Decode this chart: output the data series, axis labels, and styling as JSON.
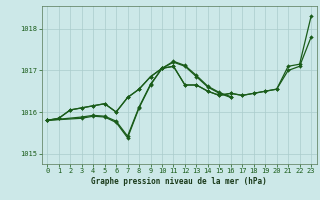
{
  "xlabel": "Graphe pression niveau de la mer (hPa)",
  "background_color": "#cce8e8",
  "grid_color": "#aacccc",
  "line_color": "#1a5c1a",
  "marker_color": "#1a5c1a",
  "xlim": [
    -0.5,
    23.5
  ],
  "ylim": [
    1014.75,
    1018.55
  ],
  "yticks": [
    1015,
    1016,
    1017,
    1018
  ],
  "xticks": [
    0,
    1,
    2,
    3,
    4,
    5,
    6,
    7,
    8,
    9,
    10,
    11,
    12,
    13,
    14,
    15,
    16,
    17,
    18,
    19,
    20,
    21,
    22,
    23
  ],
  "s1x": [
    0,
    1,
    2,
    3,
    4,
    5,
    6,
    7,
    8,
    9,
    10,
    11,
    12,
    13,
    14,
    15,
    16,
    17,
    18,
    19,
    20,
    21,
    22,
    23
  ],
  "s1y": [
    1015.8,
    1015.85,
    1016.05,
    1016.1,
    1016.15,
    1016.2,
    1016.0,
    1016.35,
    1016.55,
    1016.85,
    1017.05,
    1017.1,
    1016.65,
    1016.65,
    1016.5,
    1016.4,
    1016.45,
    1016.4,
    1016.45,
    1016.5,
    1016.55,
    1017.1,
    1017.15,
    1018.3
  ],
  "s2x": [
    0,
    1,
    2,
    3,
    4,
    5,
    6,
    7,
    8,
    9,
    10,
    11,
    12,
    13,
    14,
    15,
    16,
    17,
    18,
    19,
    20,
    21,
    22,
    23
  ],
  "s2y": [
    1015.8,
    1015.85,
    1016.05,
    1016.1,
    1016.15,
    1016.2,
    1016.0,
    1016.35,
    1016.55,
    1016.85,
    1017.05,
    1017.1,
    1016.65,
    1016.65,
    1016.5,
    1016.4,
    1016.45,
    1016.4,
    1016.45,
    1016.5,
    1016.55,
    1017.0,
    1017.1,
    1017.8
  ],
  "s3x": [
    0,
    3,
    4,
    5,
    6,
    7,
    8,
    9,
    10,
    11,
    12,
    13,
    14,
    15,
    16
  ],
  "s3y": [
    1015.8,
    1015.85,
    1015.9,
    1015.88,
    1015.75,
    1015.38,
    1016.1,
    1016.65,
    1017.05,
    1017.2,
    1017.1,
    1016.85,
    1016.6,
    1016.45,
    1016.35
  ],
  "s4x": [
    0,
    3,
    4,
    5,
    6,
    7,
    8,
    9,
    10,
    11,
    12,
    13,
    14,
    15,
    16
  ],
  "s4y": [
    1015.8,
    1015.88,
    1015.92,
    1015.9,
    1015.78,
    1015.42,
    1016.12,
    1016.67,
    1017.05,
    1017.22,
    1017.12,
    1016.88,
    1016.62,
    1016.47,
    1016.37
  ]
}
